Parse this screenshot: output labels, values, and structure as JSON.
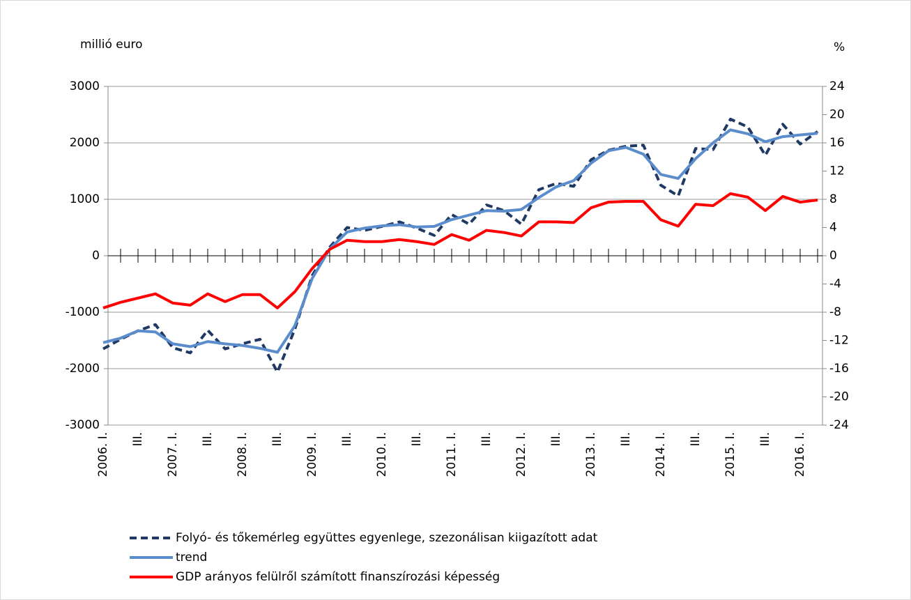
{
  "chart_data": {
    "type": "line",
    "y_label": "millió euro",
    "y2_label": "%",
    "categories": [
      "2006. I.",
      null,
      "III.",
      null,
      "2007. I.",
      null,
      "III.",
      null,
      "2008. I.",
      null,
      "III.",
      null,
      "2009. I.",
      null,
      "III.",
      null,
      "2010. I.",
      null,
      "III.",
      null,
      "2011. I.",
      null,
      "III.",
      null,
      "2012. I.",
      null,
      "III.",
      null,
      "2013. I.",
      null,
      "III.",
      null,
      "2014. I.",
      null,
      "III.",
      null,
      "2015. I.",
      null,
      "III.",
      null,
      "2016. I.",
      null
    ],
    "series": [
      {
        "name": "Folyó- és tőkemérleg együttes egyenlege, szezonálisan kiigazított adat",
        "color": "#1f3864",
        "dashed": true,
        "values": [
          -1650,
          -1480,
          -1330,
          -1220,
          -1630,
          -1720,
          -1320,
          -1650,
          -1560,
          -1480,
          -2060,
          -1300,
          -350,
          150,
          500,
          450,
          520,
          600,
          490,
          360,
          730,
          560,
          900,
          800,
          560,
          1170,
          1280,
          1230,
          1700,
          1870,
          1940,
          1960,
          1250,
          1060,
          1900,
          1880,
          2420,
          2280,
          1780,
          2330,
          1980,
          2200
        ]
      },
      {
        "name": "trend",
        "color": "#5b8ccc",
        "values": [
          -1540,
          -1460,
          -1330,
          -1350,
          -1560,
          -1610,
          -1520,
          -1560,
          -1590,
          -1640,
          -1710,
          -1240,
          -400,
          120,
          420,
          490,
          530,
          550,
          510,
          520,
          640,
          720,
          800,
          790,
          820,
          1030,
          1220,
          1330,
          1640,
          1860,
          1920,
          1800,
          1440,
          1370,
          1720,
          2000,
          2230,
          2160,
          2020,
          2110,
          2140,
          2170
        ]
      },
      {
        "name": "GDP arányos felülről számított finanszírozási képesség",
        "color": "#ff0000",
        "axis": "y2",
        "values": [
          -7.4,
          -6.6,
          -6.0,
          -5.4,
          -6.7,
          -7.0,
          -5.4,
          -6.5,
          -5.5,
          -5.5,
          -7.4,
          -5.1,
          -1.8,
          0.9,
          2.2,
          2.0,
          2.0,
          2.3,
          2.0,
          1.6,
          3.0,
          2.2,
          3.6,
          3.3,
          2.8,
          4.8,
          4.8,
          4.7,
          6.8,
          7.6,
          7.7,
          7.7,
          5.1,
          4.2,
          7.3,
          7.1,
          8.8,
          8.3,
          6.4,
          8.4,
          7.6,
          7.9
        ]
      }
    ],
    "ylim": [
      -3000,
      3000
    ],
    "yticks": [
      -3000,
      -2000,
      -1000,
      0,
      1000,
      2000,
      3000
    ],
    "y2lim": [
      -24,
      24
    ],
    "y2ticks": [
      -24,
      -20,
      -16,
      -12,
      -8,
      -4,
      0,
      4,
      8,
      12,
      16,
      20,
      24
    ],
    "grid": true,
    "legend": "bottom"
  }
}
